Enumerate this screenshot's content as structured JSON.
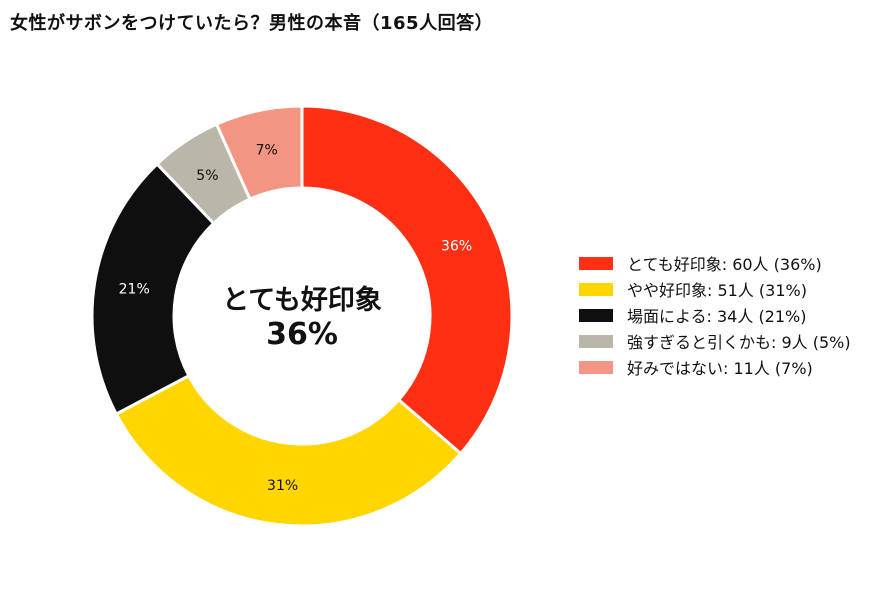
{
  "title": "女性がサボンをつけていたら？男性の本音（165人回答）",
  "chart_data": {
    "type": "pie",
    "title": "女性がサボンをつけていたら？男性の本音（165人回答）",
    "donut": true,
    "center_text": {
      "label": "とても好印象",
      "value": "36%"
    },
    "start": "top",
    "direction": "clockwise",
    "legend_position": "right",
    "slices": [
      {
        "category": "とても好印象",
        "count": 60,
        "unit": "人",
        "percent": 36,
        "percent_label": "36%",
        "legend": "とても好印象:  60人 (36%)",
        "color": "#ff2f14",
        "label_color": "#ffffff"
      },
      {
        "category": "やや好印象",
        "count": 51,
        "unit": "人",
        "percent": 31,
        "percent_label": "31%",
        "legend": "やや好印象:  51人 (31%)",
        "color": "#ffd600",
        "label_color": "#111111"
      },
      {
        "category": "場面による",
        "count": 34,
        "unit": "人",
        "percent": 21,
        "percent_label": "21%",
        "legend": "場面による:  34人 (21%)",
        "color": "#0f0f0f",
        "label_color": "#ffffff"
      },
      {
        "category": "強すぎると引くかも",
        "count": 9,
        "unit": "人",
        "percent": 5,
        "percent_label": "5%",
        "legend": "強すぎると引くかも:  9人 (5%)",
        "color": "#bab6a8",
        "label_color": "#111111"
      },
      {
        "category": "好みではない",
        "count": 11,
        "unit": "人",
        "percent": 7,
        "percent_label": "7%",
        "legend": "好みではない:  11人 (7%)",
        "color": "#f29683",
        "label_color": "#111111"
      }
    ]
  }
}
